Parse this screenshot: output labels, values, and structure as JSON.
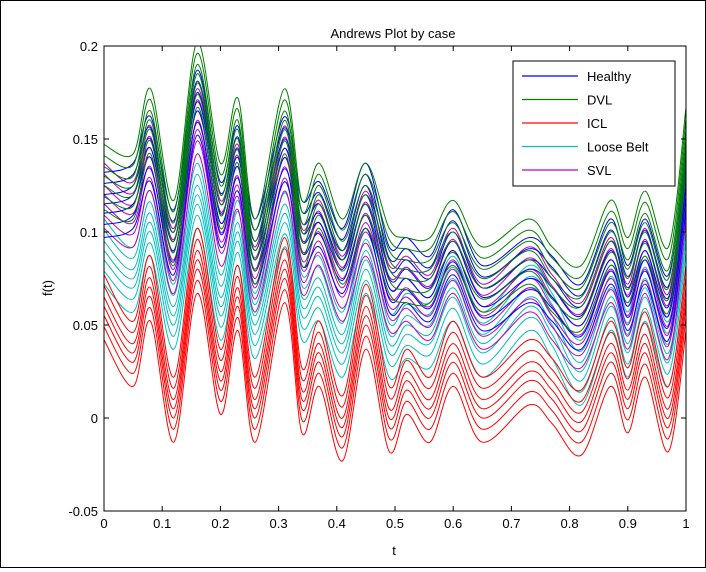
{
  "chart_data": {
    "type": "line",
    "title": "Andrews Plot by case",
    "xlabel": "t",
    "ylabel": "f(t)",
    "xlim": [
      0,
      1
    ],
    "ylim": [
      -0.05,
      0.2
    ],
    "xticks": [
      "0",
      "0.1",
      "0.2",
      "0.3",
      "0.4",
      "0.5",
      "0.6",
      "0.7",
      "0.8",
      "0.9",
      "1"
    ],
    "yticks": [
      "-0.05",
      "0",
      "0.05",
      "0.1",
      "0.15",
      "0.2"
    ],
    "grid": false,
    "legend_position": "top-right",
    "x": [
      0,
      0.05,
      0.08,
      0.12,
      0.16,
      0.2,
      0.23,
      0.26,
      0.31,
      0.34,
      0.37,
      0.41,
      0.45,
      0.49,
      0.52,
      0.56,
      0.6,
      0.65,
      0.73,
      0.77,
      0.82,
      0.87,
      0.9,
      0.93,
      0.97,
      1.0
    ],
    "series": [
      {
        "name": "Healthy",
        "color": "#0000ff",
        "values": [
          0.115,
          0.12,
          0.145,
          0.095,
          0.17,
          0.11,
          0.14,
          0.09,
          0.145,
          0.1,
          0.11,
          0.085,
          0.12,
          0.075,
          0.08,
          0.07,
          0.095,
          0.065,
          0.08,
          0.07,
          0.055,
          0.09,
          0.065,
          0.09,
          0.06,
          0.13
        ]
      },
      {
        "name": "DVL",
        "color": "#008000",
        "values": [
          0.13,
          0.125,
          0.16,
          0.1,
          0.185,
          0.12,
          0.155,
          0.09,
          0.16,
          0.1,
          0.12,
          0.09,
          0.12,
          0.085,
          0.08,
          0.08,
          0.1,
          0.075,
          0.09,
          0.075,
          0.065,
          0.1,
          0.08,
          0.105,
          0.075,
          0.15
        ]
      },
      {
        "name": "ICL",
        "color": "#ff0000",
        "values": [
          0.06,
          0.035,
          0.07,
          0.005,
          0.085,
          0.02,
          0.065,
          0.005,
          0.08,
          0.01,
          0.035,
          -0.005,
          0.055,
          0.0,
          0.02,
          0.005,
          0.035,
          0.005,
          0.025,
          0.015,
          -0.002,
          0.035,
          0.01,
          0.04,
          0.0,
          0.065
        ]
      },
      {
        "name": "Loose Belt",
        "color": "#00bfbf",
        "values": [
          0.09,
          0.075,
          0.105,
          0.055,
          0.12,
          0.06,
          0.1,
          0.05,
          0.11,
          0.06,
          0.07,
          0.04,
          0.085,
          0.04,
          0.05,
          0.045,
          0.07,
          0.04,
          0.065,
          0.05,
          0.025,
          0.065,
          0.04,
          0.07,
          0.035,
          0.1
        ]
      },
      {
        "name": "SVL",
        "color": "#bf00bf",
        "values": [
          0.12,
          0.11,
          0.14,
          0.085,
          0.16,
          0.1,
          0.13,
          0.075,
          0.14,
          0.085,
          0.1,
          0.07,
          0.105,
          0.065,
          0.07,
          0.06,
          0.085,
          0.055,
          0.075,
          0.06,
          0.045,
          0.08,
          0.055,
          0.085,
          0.05,
          0.125
        ]
      }
    ]
  }
}
